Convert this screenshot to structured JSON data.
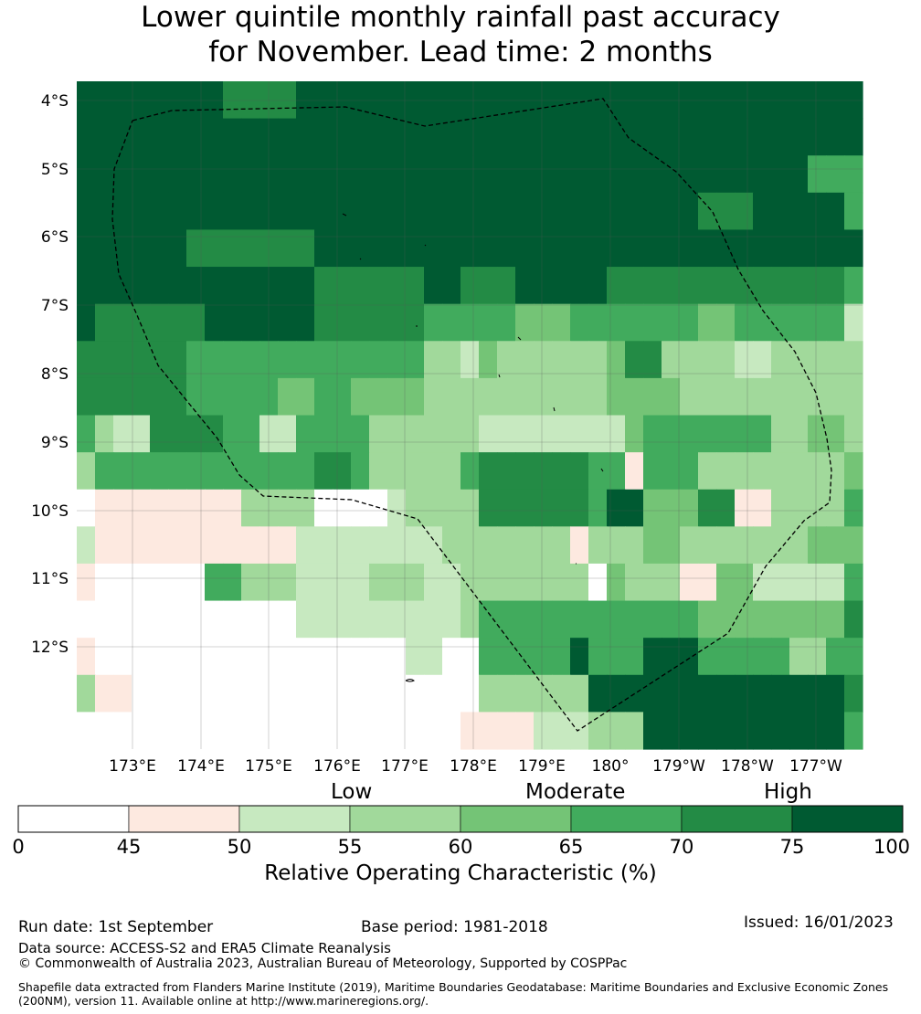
{
  "title_line1": "Lower quintile monthly rainfall past accuracy",
  "title_line2": "for November. Lead time: 2 months",
  "lat_labels": [
    "4°S",
    "5°S",
    "6°S",
    "7°S",
    "8°S",
    "9°S",
    "10°S",
    "11°S",
    "12°S"
  ],
  "lon_labels": [
    "173°E",
    "174°E",
    "175°E",
    "176°E",
    "177°E",
    "178°E",
    "179°E",
    "180°",
    "179°W",
    "178°W",
    "177°W"
  ],
  "colorbar": {
    "levels": [
      "0",
      "45",
      "50",
      "55",
      "60",
      "65",
      "70",
      "75",
      "100"
    ],
    "colors": [
      "#ffffff",
      "#fde9e0",
      "#c7e9c0",
      "#a1d99b",
      "#74c476",
      "#41ab5d",
      "#238b45",
      "#005a32"
    ],
    "category_low": "Low",
    "category_moderate": "Moderate",
    "category_high": "High",
    "label": "Relative Operating Characteristic (%)"
  },
  "grid": [
    "7777777766667777777777777777777777777777777",
    "7777777777777777777777777777777777777777777",
    "7777777777777777777777777777777777777777555",
    "7777777777777777777777777777777777666777775",
    "7777776666666777777777777777777777777777777",
    "7777777777777666666776667777766666666666665",
    "7666666777777666666555554445555555445555552",
    "6666665555555555555332433333346633332233333",
    "6666665555544554444333333333344443333333333",
    "5322666655225555333333222222224555555533443",
    "3555555555555665333335666666551555333333334",
    "0111111113333000023333666666577444661133335",
    "2111111111112222222233333331333443333333444",
    "1000000553332222333223333333043331144222225",
    "0000000000002222222223555555555555444444446",
    "1000000000000000002200555557555777555553355",
    "3110000000000000000000333333777777777777776",
    "0000000000000000000001111222333777777777775"
  ],
  "footer": {
    "run_date": "Run date: 1st September",
    "base_period": "Base period: 1981-2018",
    "issued": "Issued: 16/01/2023",
    "data_source": "Data source: ACCESS-S2 and ERA5 Climate Reanalysis",
    "copyright": "© Commonwealth of Australia 2023, Australian Bureau of Meteorology, Supported by COSPPac",
    "shapefile": "Shapefile data extracted from Flanders Marine Institute (2019), Maritime Boundaries Geodatabase: Maritime Boundaries and Exclusive Economic Zones (200NM), version 11. Available online at http://www.marineregions.org/."
  }
}
